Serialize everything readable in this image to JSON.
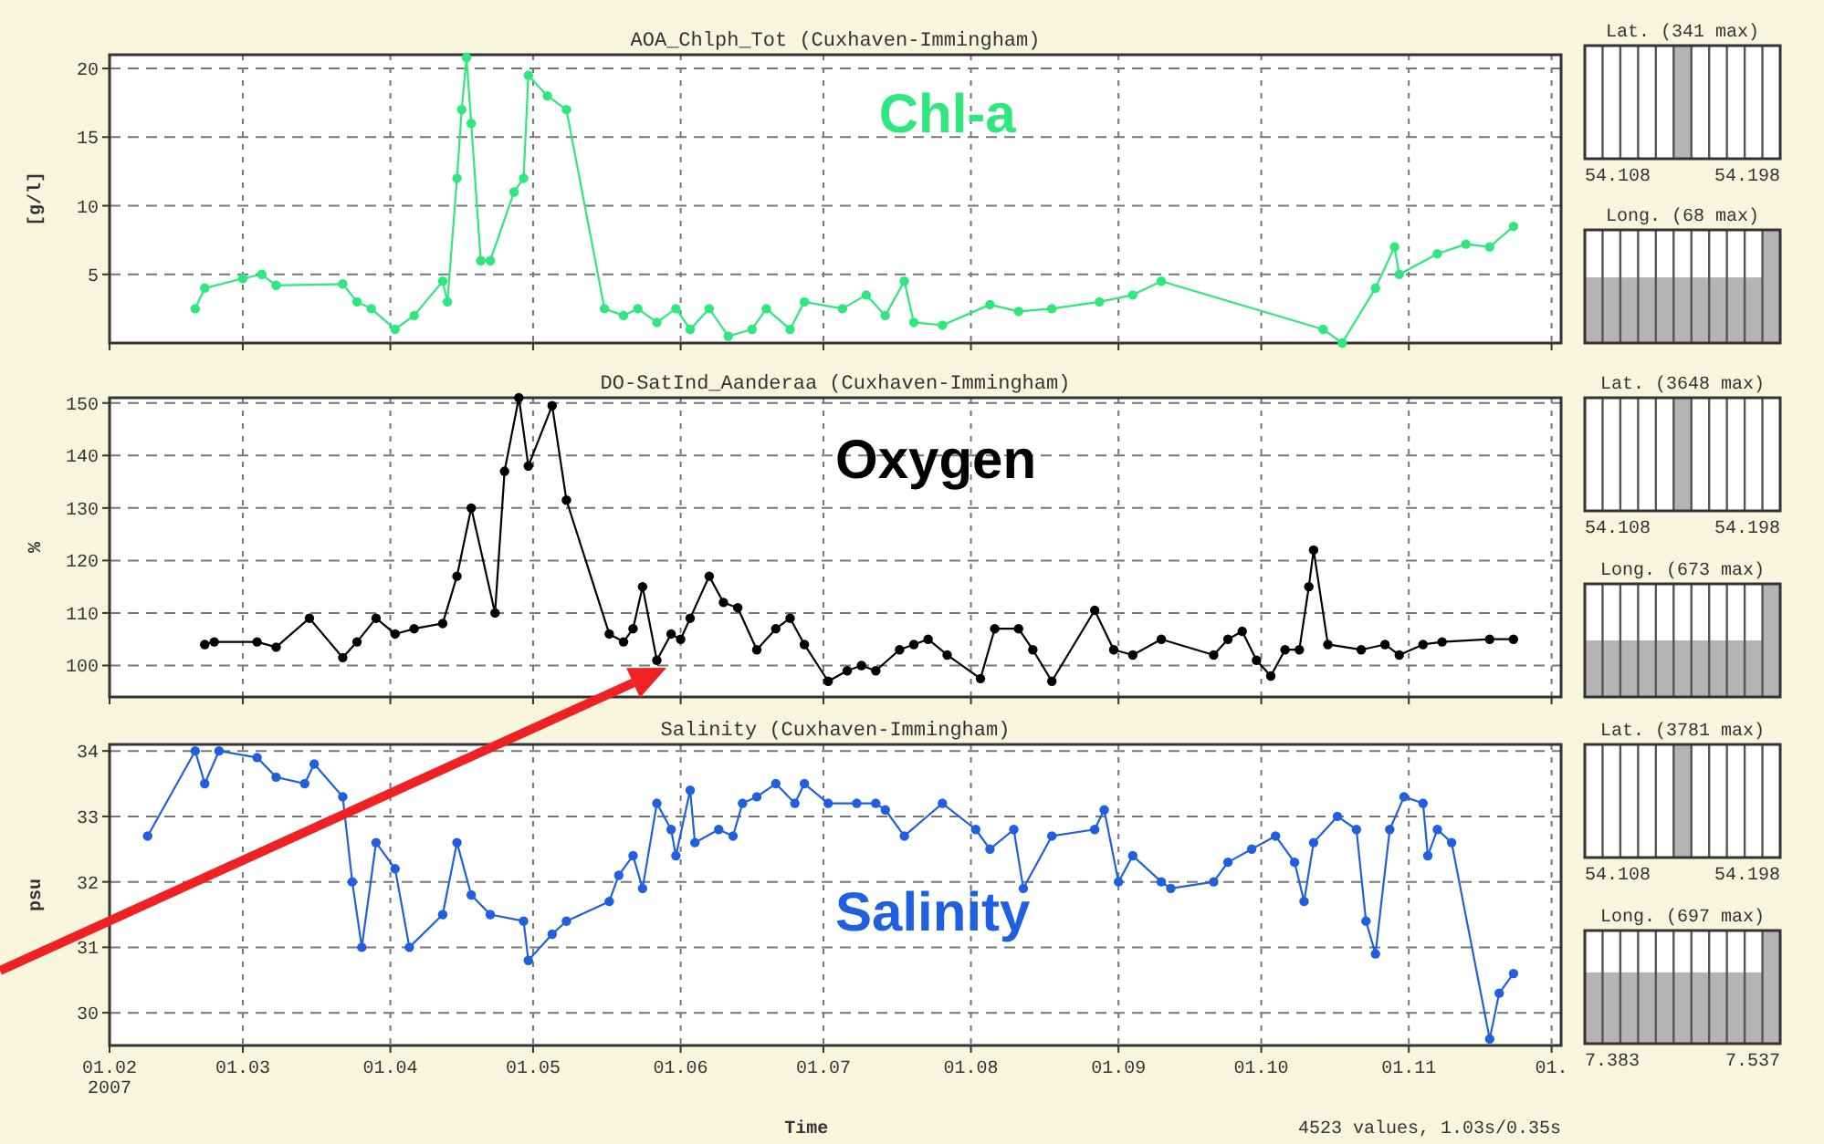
{
  "chart_data": [
    {
      "type": "line",
      "title": "AOA_Chlph_Tot (Cuxhaven-Immingham)",
      "ylabel": "[g/l]",
      "xlim": [
        "2007-02-01",
        "2007-12-03"
      ],
      "ylim": [
        0,
        21
      ],
      "yticks": [
        5,
        10,
        15,
        20
      ],
      "xticks": [
        {
          "value": "2007-02-01",
          "label": null
        },
        {
          "value": "2007-03-01",
          "label": null
        },
        {
          "value": "2007-04-01",
          "label": null
        },
        {
          "value": "2007-05-01",
          "label": null
        },
        {
          "value": "2007-06-01",
          "label": null
        },
        {
          "value": "2007-07-01",
          "label": null
        },
        {
          "value": "2007-08-01",
          "label": null
        },
        {
          "value": "2007-09-01",
          "label": null
        },
        {
          "value": "2007-10-01",
          "label": null
        },
        {
          "value": "2007-11-01",
          "label": null
        },
        {
          "value": "2007-12-01",
          "label": null
        }
      ],
      "tick_labels": "y",
      "grid": true,
      "marker": "circle",
      "series": [
        {
          "name": "Chl-a",
          "color": "#2ee87e",
          "x": [
            "2007-02-19",
            "2007-02-21",
            "2007-03-01",
            "2007-03-05",
            "2007-03-08",
            "2007-03-22",
            "2007-03-25",
            "2007-03-28",
            "2007-04-02",
            "2007-04-06",
            "2007-04-12",
            "2007-04-13",
            "2007-04-15",
            "2007-04-16",
            "2007-04-17",
            "2007-04-18",
            "2007-04-20",
            "2007-04-22",
            "2007-04-27",
            "2007-04-29",
            "2007-04-30",
            "2007-05-04",
            "2007-05-08",
            "2007-05-16",
            "2007-05-20",
            "2007-05-23",
            "2007-05-27",
            "2007-05-31",
            "2007-06-03",
            "2007-06-07",
            "2007-06-11",
            "2007-06-16",
            "2007-06-19",
            "2007-06-24",
            "2007-06-27",
            "2007-07-05",
            "2007-07-10",
            "2007-07-14",
            "2007-07-18",
            "2007-07-20",
            "2007-07-26",
            "2007-08-05",
            "2007-08-11",
            "2007-08-18",
            "2007-08-28",
            "2007-09-04",
            "2007-09-10",
            "2007-10-14",
            "2007-10-18",
            "2007-10-25",
            "2007-10-29",
            "2007-10-30",
            "2007-11-07",
            "2007-11-13",
            "2007-11-18",
            "2007-11-23"
          ],
          "values": [
            2.5,
            4,
            4.7,
            5,
            4.2,
            4.3,
            3,
            2.5,
            1,
            2,
            4.5,
            3,
            12,
            17,
            20.8,
            16,
            6,
            6,
            11,
            12,
            19.5,
            18,
            17,
            2.5,
            2,
            2.5,
            1.5,
            2.5,
            1,
            2.5,
            0.5,
            1,
            2.5,
            1,
            3,
            2.5,
            3.5,
            2,
            4.5,
            1.5,
            1.3,
            2.8,
            2.3,
            2.5,
            3,
            3.5,
            4.5,
            1,
            0,
            4,
            7,
            5,
            6.5,
            7.2,
            7,
            8.5
          ]
        }
      ]
    },
    {
      "type": "other",
      "title": "Lat. (341 max)",
      "annotations": [
        "54.108",
        "54.198"
      ]
    },
    {
      "type": "other",
      "title": "Long. (68 max)"
    },
    {
      "type": "line",
      "title": "DO-SatInd_Aanderaa (Cuxhaven-Immingham)",
      "ylabel": "%",
      "xlim": [
        "2007-02-01",
        "2007-12-03"
      ],
      "ylim": [
        94,
        151
      ],
      "yticks": [
        100,
        110,
        120,
        130,
        140,
        150
      ],
      "xticks": [
        {
          "value": "2007-02-01",
          "label": null
        },
        {
          "value": "2007-03-01",
          "label": null
        },
        {
          "value": "2007-04-01",
          "label": null
        },
        {
          "value": "2007-05-01",
          "label": null
        },
        {
          "value": "2007-06-01",
          "label": null
        },
        {
          "value": "2007-07-01",
          "label": null
        },
        {
          "value": "2007-08-01",
          "label": null
        },
        {
          "value": "2007-09-01",
          "label": null
        },
        {
          "value": "2007-10-01",
          "label": null
        },
        {
          "value": "2007-11-01",
          "label": null
        },
        {
          "value": "2007-12-01",
          "label": null
        }
      ],
      "tick_labels": "y",
      "grid": true,
      "marker": "circle",
      "series": [
        {
          "name": "Oxygen",
          "color": "#000000",
          "x": [
            "2007-02-21",
            "2007-02-23",
            "2007-03-04",
            "2007-03-08",
            "2007-03-15",
            "2007-03-22",
            "2007-03-25",
            "2007-03-29",
            "2007-04-02",
            "2007-04-06",
            "2007-04-12",
            "2007-04-15",
            "2007-04-18",
            "2007-04-23",
            "2007-04-25",
            "2007-04-28",
            "2007-04-30",
            "2007-05-05",
            "2007-05-08",
            "2007-05-17",
            "2007-05-20",
            "2007-05-22",
            "2007-05-24",
            "2007-05-27",
            "2007-05-30",
            "2007-06-01",
            "2007-06-03",
            "2007-06-07",
            "2007-06-10",
            "2007-06-13",
            "2007-06-17",
            "2007-06-21",
            "2007-06-24",
            "2007-06-27",
            "2007-07-02",
            "2007-07-06",
            "2007-07-09",
            "2007-07-12",
            "2007-07-17",
            "2007-07-20",
            "2007-07-23",
            "2007-07-27",
            "2007-08-03",
            "2007-08-06",
            "2007-08-11",
            "2007-08-14",
            "2007-08-18",
            "2007-08-27",
            "2007-08-31",
            "2007-09-04",
            "2007-09-10",
            "2007-09-21",
            "2007-09-24",
            "2007-09-27",
            "2007-09-30",
            "2007-10-03",
            "2007-10-06",
            "2007-10-09",
            "2007-10-11",
            "2007-10-12",
            "2007-10-15",
            "2007-10-22",
            "2007-10-27",
            "2007-10-30",
            "2007-11-04",
            "2007-11-08",
            "2007-11-18",
            "2007-11-23"
          ],
          "values": [
            104,
            104.5,
            104.5,
            103.5,
            109,
            101.5,
            104.5,
            109,
            106,
            107,
            108,
            117,
            130,
            110,
            137,
            151,
            138,
            149.5,
            131.5,
            106,
            104.5,
            107,
            115,
            101,
            106,
            105,
            109,
            117,
            112,
            111,
            103,
            107,
            109,
            104,
            97,
            99,
            100,
            99,
            103,
            104,
            105,
            102,
            97.5,
            107,
            107,
            103,
            97,
            110.5,
            103,
            102,
            105,
            102,
            105,
            106.5,
            101,
            98,
            103,
            103,
            115,
            122,
            104,
            103,
            104,
            102,
            104,
            104.5,
            105,
            105
          ]
        }
      ]
    },
    {
      "type": "other",
      "title": "Lat. (3648 max)",
      "annotations": [
        "54.108",
        "54.198"
      ]
    },
    {
      "type": "other",
      "title": "Long. (673 max)"
    },
    {
      "type": "line",
      "title": "Salinity (Cuxhaven-Immingham)",
      "ylabel": "psu",
      "xlabel": "Time",
      "xlim": [
        "2007-02-01",
        "2007-12-03"
      ],
      "ylim": [
        29.5,
        34.1
      ],
      "yticks": [
        30,
        31,
        32,
        33,
        34
      ],
      "xticks": [
        {
          "value": "2007-02-01",
          "label": "01.02\n2007"
        },
        {
          "value": "2007-03-01",
          "label": "01.03"
        },
        {
          "value": "2007-04-01",
          "label": "01.04"
        },
        {
          "value": "2007-05-01",
          "label": "01.05"
        },
        {
          "value": "2007-06-01",
          "label": "01.06"
        },
        {
          "value": "2007-07-01",
          "label": "01.07"
        },
        {
          "value": "2007-08-01",
          "label": "01.08"
        },
        {
          "value": "2007-09-01",
          "label": "01.09"
        },
        {
          "value": "2007-10-01",
          "label": "01.10"
        },
        {
          "value": "2007-11-01",
          "label": "01.11"
        },
        {
          "value": "2007-12-01",
          "label": "01."
        }
      ],
      "grid": true,
      "marker": "circle",
      "annotations": [
        "4523 values, 1.03s/0.35s"
      ],
      "series": [
        {
          "name": "Salinity",
          "color": "#1f5fe0",
          "x": [
            "2007-02-09",
            "2007-02-19",
            "2007-02-21",
            "2007-02-24",
            "2007-03-04",
            "2007-03-08",
            "2007-03-14",
            "2007-03-16",
            "2007-03-22",
            "2007-03-24",
            "2007-03-26",
            "2007-03-29",
            "2007-04-02",
            "2007-04-05",
            "2007-04-12",
            "2007-04-15",
            "2007-04-18",
            "2007-04-22",
            "2007-04-29",
            "2007-04-30",
            "2007-05-05",
            "2007-05-08",
            "2007-05-17",
            "2007-05-19",
            "2007-05-22",
            "2007-05-24",
            "2007-05-27",
            "2007-05-30",
            "2007-05-31",
            "2007-06-03",
            "2007-06-04",
            "2007-06-09",
            "2007-06-12",
            "2007-06-14",
            "2007-06-17",
            "2007-06-21",
            "2007-06-25",
            "2007-06-27",
            "2007-07-02",
            "2007-07-08",
            "2007-07-12",
            "2007-07-14",
            "2007-07-18",
            "2007-07-26",
            "2007-08-02",
            "2007-08-05",
            "2007-08-10",
            "2007-08-12",
            "2007-08-18",
            "2007-08-27",
            "2007-08-29",
            "2007-09-01",
            "2007-09-04",
            "2007-09-10",
            "2007-09-12",
            "2007-09-21",
            "2007-09-24",
            "2007-09-29",
            "2007-10-04",
            "2007-10-08",
            "2007-10-10",
            "2007-10-12",
            "2007-10-17",
            "2007-10-21",
            "2007-10-23",
            "2007-10-25",
            "2007-10-28",
            "2007-10-31",
            "2007-11-04",
            "2007-11-05",
            "2007-11-07",
            "2007-11-10",
            "2007-11-18",
            "2007-11-20",
            "2007-11-23"
          ],
          "values": [
            32.7,
            34,
            33.5,
            34,
            33.9,
            33.6,
            33.5,
            33.8,
            33.3,
            32,
            31,
            32.6,
            32.2,
            31,
            31.5,
            32.6,
            31.8,
            31.5,
            31.4,
            30.8,
            31.2,
            31.4,
            31.7,
            32.1,
            32.4,
            31.9,
            33.2,
            32.8,
            32.4,
            33.4,
            32.6,
            32.8,
            32.7,
            33.2,
            33.3,
            33.5,
            33.2,
            33.5,
            33.2,
            33.2,
            33.2,
            33.1,
            32.7,
            33.2,
            32.8,
            32.5,
            32.8,
            31.9,
            32.7,
            32.8,
            33.1,
            32,
            32.4,
            32,
            31.9,
            32,
            32.3,
            32.5,
            32.7,
            32.3,
            31.7,
            32.6,
            33,
            32.8,
            31.4,
            30.9,
            32.8,
            33.3,
            33.2,
            32.4,
            32.8,
            32.6,
            29.6,
            30.3,
            30.6
          ]
        }
      ]
    },
    {
      "type": "other",
      "title": "Lat. (3781 max)",
      "annotations": [
        "54.108",
        "54.198"
      ]
    },
    {
      "type": "other",
      "title": "Long. (697 max)",
      "annotations": [
        "7.383",
        "7.537"
      ]
    }
  ]
}
